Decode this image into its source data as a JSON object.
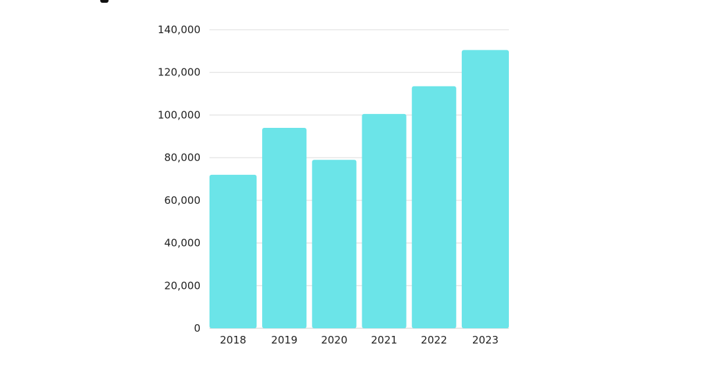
{
  "chart_data": {
    "type": "bar",
    "title": "",
    "xlabel": "",
    "ylabel": "",
    "categories": [
      "2018",
      "2019",
      "2020",
      "2021",
      "2022",
      "2023"
    ],
    "values": [
      72000,
      94000,
      79000,
      100500,
      113500,
      130500
    ],
    "ylim": [
      0,
      140000
    ],
    "y_ticks": [
      0,
      20000,
      40000,
      60000,
      80000,
      100000,
      120000,
      140000
    ],
    "y_tick_labels": [
      "0",
      "20,000",
      "40,000",
      "60,000",
      "80,000",
      "100,000",
      "120,000",
      "140,000"
    ],
    "grid": true,
    "legend": "none",
    "colors": {
      "bar": "#6be4e8",
      "grid": "#dcdcdc",
      "text": "#222222"
    }
  }
}
